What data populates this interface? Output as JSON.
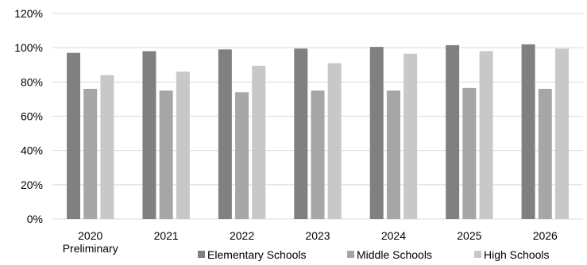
{
  "chart_data": {
    "type": "bar",
    "categories": [
      "2020 Preliminary",
      "2021",
      "2022",
      "2023",
      "2024",
      "2025",
      "2026"
    ],
    "category_lines": [
      [
        "2020",
        "Preliminary"
      ],
      [
        "2021"
      ],
      [
        "2022"
      ],
      [
        "2023"
      ],
      [
        "2024"
      ],
      [
        "2025"
      ],
      [
        "2026"
      ]
    ],
    "series": [
      {
        "name": "Elementary Schools",
        "color": "#808080",
        "values": [
          97,
          98,
          99,
          99.5,
          100.5,
          101.5,
          102
        ]
      },
      {
        "name": "Middle Schools",
        "color": "#a6a6a6",
        "values": [
          76,
          75,
          74,
          75,
          75,
          76.5,
          76
        ]
      },
      {
        "name": "High Schools",
        "color": "#c8c8c8",
        "values": [
          84,
          86,
          89.5,
          91,
          96.5,
          98,
          99.5
        ]
      }
    ],
    "ylim": [
      0,
      120
    ],
    "yticks": [
      0,
      20,
      40,
      60,
      80,
      100,
      120
    ],
    "ytick_labels": [
      "0%",
      "20%",
      "40%",
      "60%",
      "80%",
      "100%",
      "120%"
    ],
    "grid": true,
    "legend_position": "bottom",
    "title": "",
    "xlabel": "",
    "ylabel": ""
  }
}
